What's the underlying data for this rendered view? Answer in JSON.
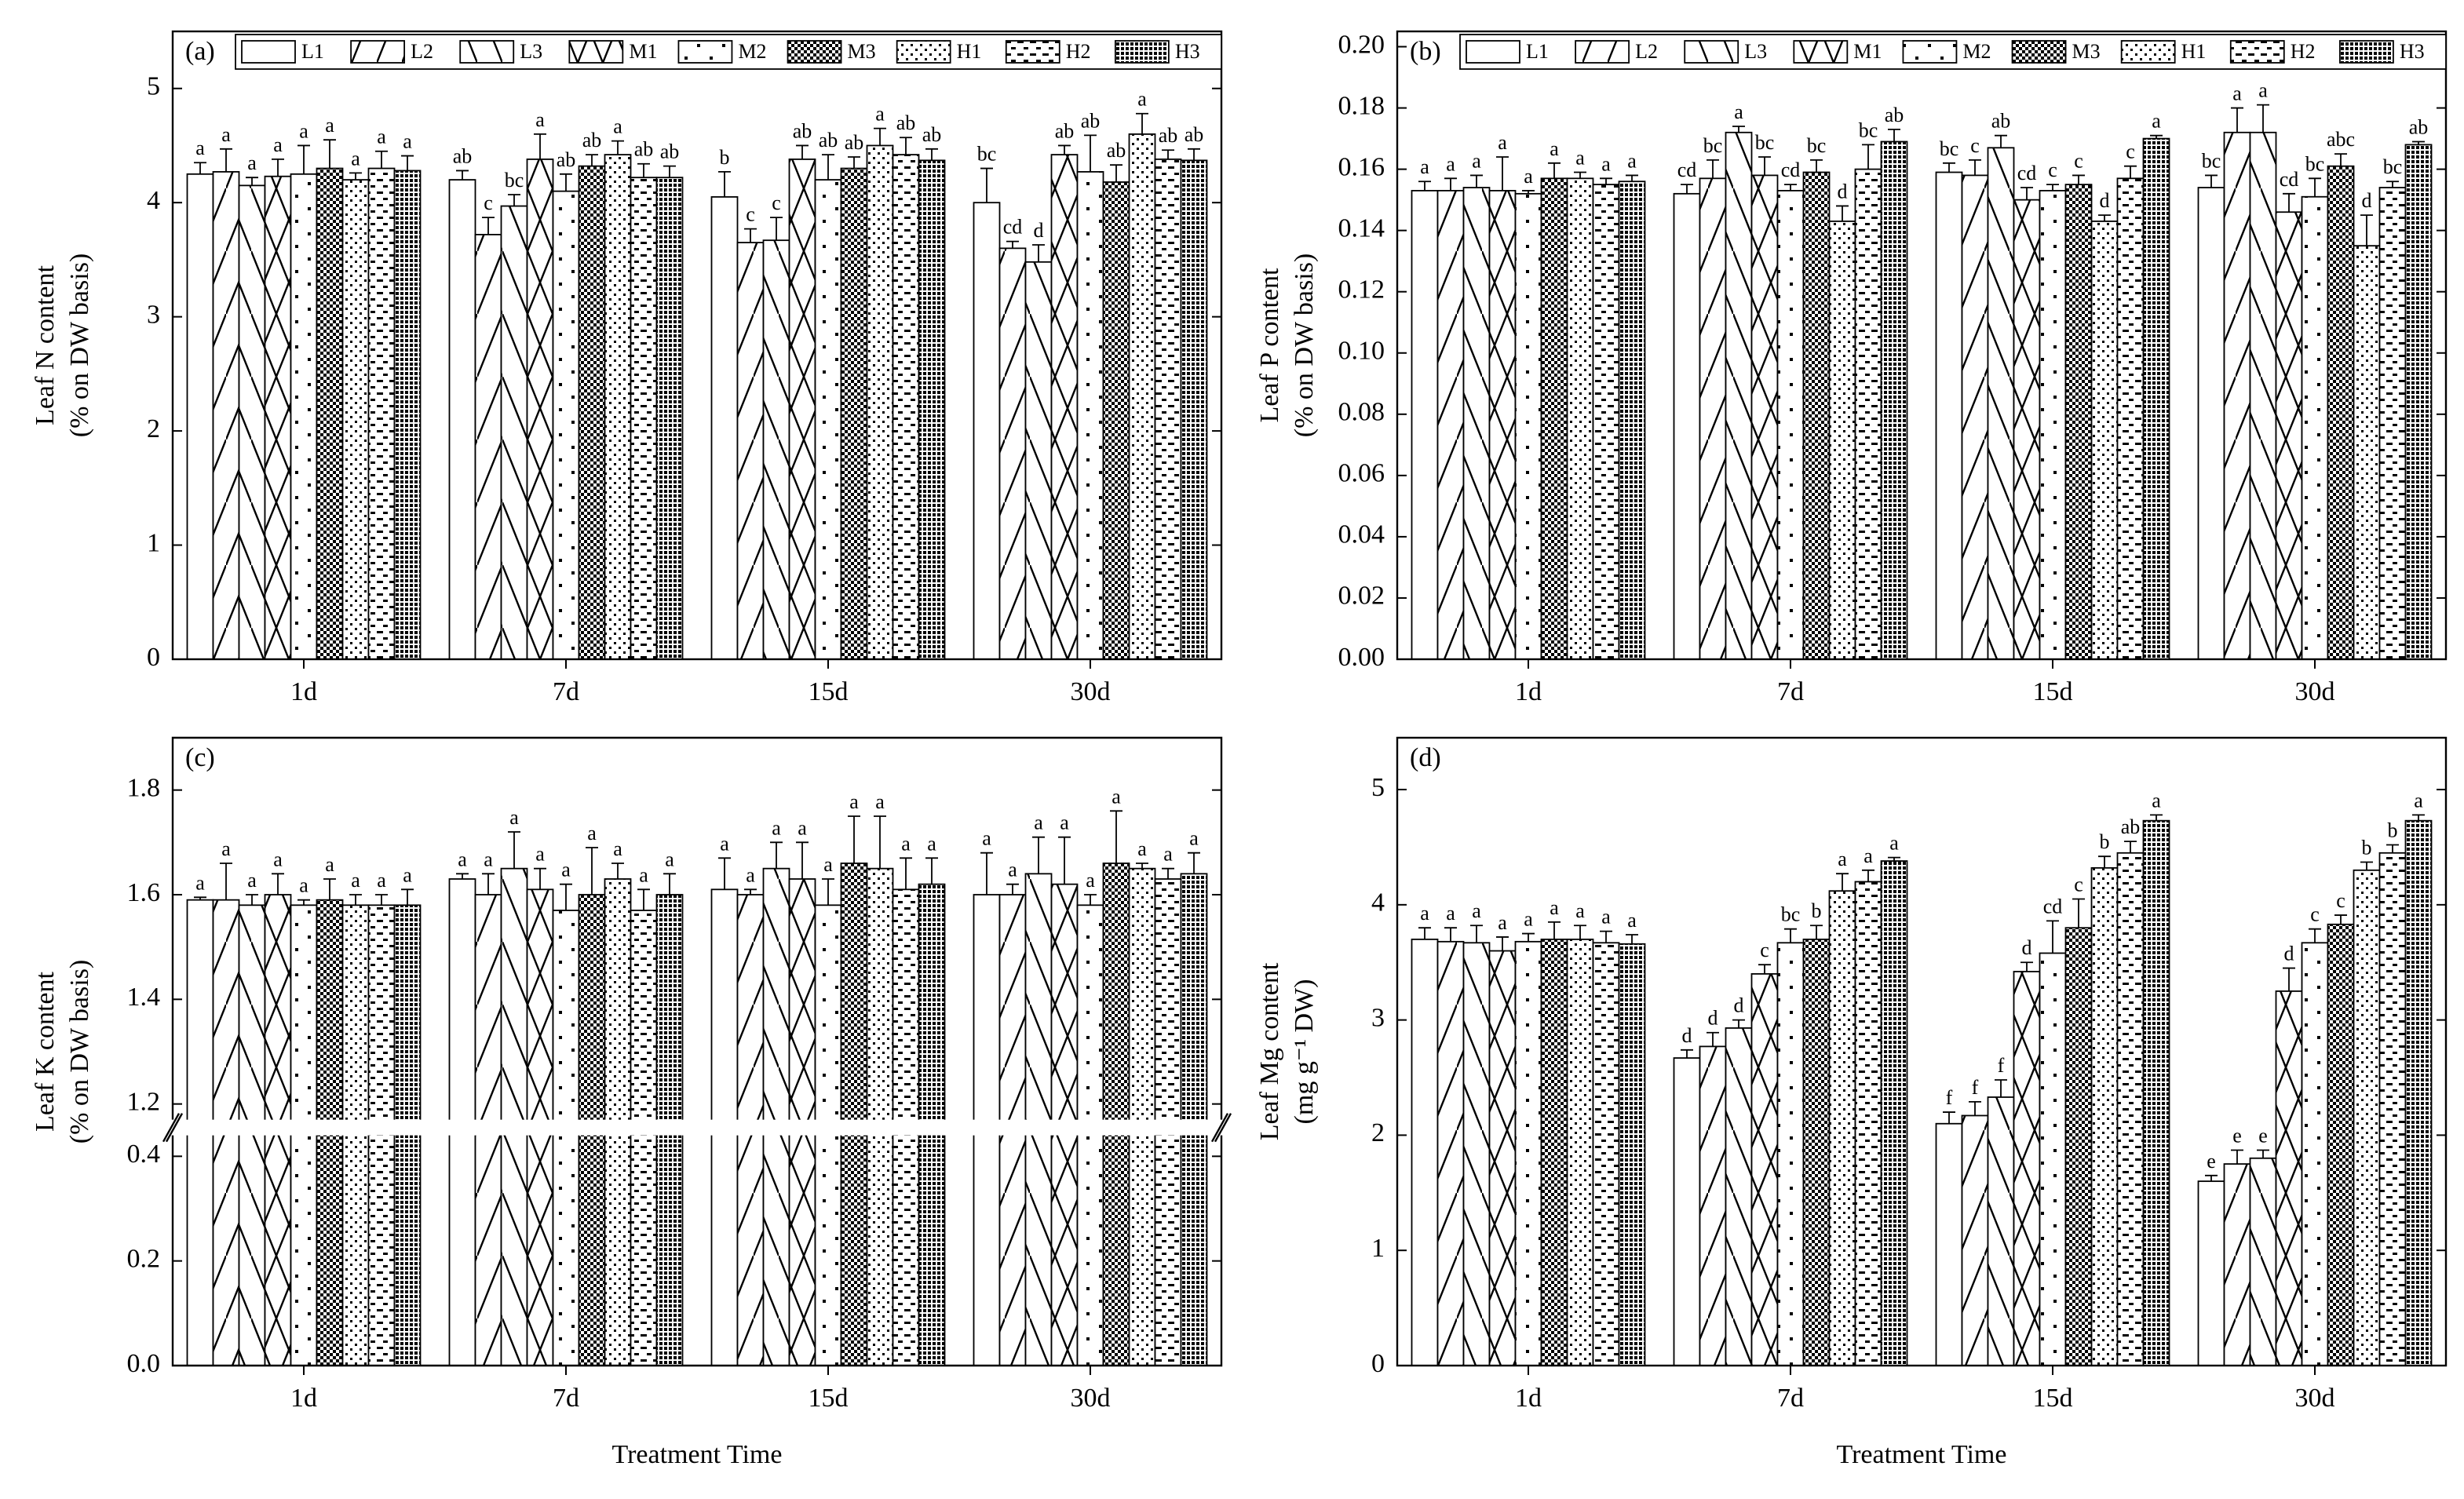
{
  "chart_data": [
    {
      "type": "bar",
      "label": "(a)",
      "ylabel": [
        "Leaf  N content",
        "(% on DW basis)"
      ],
      "legend": "top",
      "categories": [
        "1d",
        "7d",
        "15d",
        "30d"
      ],
      "ylim": [
        0,
        5.5
      ],
      "yticks": [
        0,
        1,
        2,
        3,
        4,
        5
      ],
      "series": [
        {
          "name": "L1",
          "values": [
            4.25,
            4.2,
            4.05,
            4.0
          ],
          "errors": [
            0.1,
            0.08,
            0.22,
            0.3
          ],
          "letters": [
            "a",
            "ab",
            "b",
            "bc"
          ]
        },
        {
          "name": "L2",
          "values": [
            4.27,
            3.72,
            3.65,
            3.6
          ],
          "errors": [
            0.2,
            0.15,
            0.12,
            0.06
          ],
          "letters": [
            "a",
            "c",
            "c",
            "cd"
          ]
        },
        {
          "name": "L3",
          "values": [
            4.15,
            3.97,
            3.67,
            3.48
          ],
          "errors": [
            0.07,
            0.1,
            0.2,
            0.15
          ],
          "letters": [
            "a",
            "bc",
            "c",
            "d"
          ]
        },
        {
          "name": "M1",
          "values": [
            4.23,
            4.38,
            4.38,
            4.42
          ],
          "errors": [
            0.15,
            0.22,
            0.12,
            0.08
          ],
          "letters": [
            "a",
            "a",
            "ab",
            "ab"
          ]
        },
        {
          "name": "M2",
          "values": [
            4.25,
            4.1,
            4.2,
            4.27
          ],
          "errors": [
            0.25,
            0.15,
            0.22,
            0.32
          ],
          "letters": [
            "a",
            "ab",
            "ab",
            "ab"
          ]
        },
        {
          "name": "M3",
          "values": [
            4.3,
            4.32,
            4.3,
            4.18
          ],
          "errors": [
            0.25,
            0.1,
            0.1,
            0.15
          ],
          "letters": [
            "a",
            "ab",
            "ab",
            "ab"
          ]
        },
        {
          "name": "H1",
          "values": [
            4.2,
            4.42,
            4.5,
            4.6
          ],
          "errors": [
            0.06,
            0.12,
            0.15,
            0.18
          ],
          "letters": [
            "a",
            "a",
            "a",
            "a"
          ]
        },
        {
          "name": "H2",
          "values": [
            4.3,
            4.22,
            4.42,
            4.38
          ],
          "errors": [
            0.15,
            0.12,
            0.15,
            0.08
          ],
          "letters": [
            "a",
            "ab",
            "ab",
            "ab"
          ]
        },
        {
          "name": "H3",
          "values": [
            4.28,
            4.22,
            4.37,
            4.37
          ],
          "errors": [
            0.13,
            0.1,
            0.1,
            0.1
          ],
          "letters": [
            "a",
            "ab",
            "ab",
            "ab"
          ]
        }
      ]
    },
    {
      "type": "bar",
      "label": "(b)",
      "ylabel": [
        "Leaf  P content",
        "(% on DW basis)"
      ],
      "legend": "top",
      "categories": [
        "1d",
        "7d",
        "15d",
        "30d"
      ],
      "ylim": [
        0,
        0.205
      ],
      "yticks": [
        {
          "value": 0,
          "label": "0.00"
        },
        0.02,
        0.04,
        0.06,
        0.08,
        {
          "value": 0.1,
          "label": "0.10"
        },
        0.12,
        0.14,
        0.16,
        0.18,
        {
          "value": 0.2,
          "label": "0.20"
        }
      ],
      "series": [
        {
          "name": "L1",
          "values": [
            0.153,
            0.152,
            0.159,
            0.154
          ],
          "errors": [
            0.003,
            0.003,
            0.003,
            0.004
          ],
          "letters": [
            "a",
            "cd",
            "bc",
            "bc"
          ]
        },
        {
          "name": "L2",
          "values": [
            0.153,
            0.157,
            0.158,
            0.172
          ],
          "errors": [
            0.004,
            0.006,
            0.005,
            0.008
          ],
          "letters": [
            "a",
            "bc",
            "c",
            "a"
          ]
        },
        {
          "name": "L3",
          "values": [
            0.154,
            0.172,
            0.167,
            0.172
          ],
          "errors": [
            0.004,
            0.002,
            0.004,
            0.009
          ],
          "letters": [
            "a",
            "a",
            "ab",
            "a"
          ]
        },
        {
          "name": "M1",
          "values": [
            0.153,
            0.158,
            0.15,
            0.146
          ],
          "errors": [
            0.011,
            0.006,
            0.004,
            0.006
          ],
          "letters": [
            "a",
            "bc",
            "cd",
            "cd"
          ]
        },
        {
          "name": "M2",
          "values": [
            0.152,
            0.153,
            0.153,
            0.151
          ],
          "errors": [
            0.001,
            0.002,
            0.002,
            0.006
          ],
          "letters": [
            "a",
            "cd",
            "c",
            "bc"
          ]
        },
        {
          "name": "M3",
          "values": [
            0.157,
            0.159,
            0.155,
            0.161
          ],
          "errors": [
            0.005,
            0.004,
            0.003,
            0.004
          ],
          "letters": [
            "a",
            "bc",
            "c",
            "abc"
          ]
        },
        {
          "name": "H1",
          "values": [
            0.157,
            0.143,
            0.143,
            0.135
          ],
          "errors": [
            0.002,
            0.005,
            0.002,
            0.01
          ],
          "letters": [
            "a",
            "d",
            "d",
            "d"
          ]
        },
        {
          "name": "H2",
          "values": [
            0.155,
            0.16,
            0.157,
            0.154
          ],
          "errors": [
            0.002,
            0.008,
            0.004,
            0.002
          ],
          "letters": [
            "a",
            "bc",
            "c",
            "bc"
          ]
        },
        {
          "name": "H3",
          "values": [
            0.156,
            0.169,
            0.17,
            0.168
          ],
          "errors": [
            0.002,
            0.004,
            0.001,
            0.001
          ],
          "letters": [
            "a",
            "ab",
            "a",
            "ab"
          ]
        }
      ]
    },
    {
      "type": "bar",
      "label": "(c)",
      "ylabel": [
        "Leaf  K content",
        "(% on DW basis)"
      ],
      "xlabel": "Treatment Time",
      "categories": [
        "1d",
        "7d",
        "15d",
        "30d"
      ],
      "ylim": [
        0,
        1.9
      ],
      "ybreak": [
        0.44,
        1.17
      ],
      "yticks": [
        {
          "value": 0,
          "label": "0.0"
        },
        0.2,
        0.4,
        1.2,
        1.4,
        1.6,
        1.8
      ],
      "series": [
        {
          "values": [
            1.59,
            1.63,
            1.61,
            1.6
          ],
          "errors": [
            0.005,
            0.01,
            0.06,
            0.08
          ],
          "letters": [
            "a",
            "a",
            "a",
            "a"
          ]
        },
        {
          "values": [
            1.59,
            1.6,
            1.6,
            1.6
          ],
          "errors": [
            0.07,
            0.04,
            0.01,
            0.02
          ],
          "letters": [
            "a",
            "a",
            "a",
            "a"
          ]
        },
        {
          "values": [
            1.58,
            1.65,
            1.65,
            1.64
          ],
          "errors": [
            0.02,
            0.07,
            0.05,
            0.07
          ],
          "letters": [
            "a",
            "a",
            "a",
            "a"
          ]
        },
        {
          "values": [
            1.6,
            1.61,
            1.63,
            1.62
          ],
          "errors": [
            0.04,
            0.04,
            0.07,
            0.09
          ],
          "letters": [
            "a",
            "a",
            "a",
            "a"
          ]
        },
        {
          "values": [
            1.58,
            1.57,
            1.58,
            1.58
          ],
          "errors": [
            0.01,
            0.05,
            0.05,
            0.02
          ],
          "letters": [
            "a",
            "a",
            "a",
            "a"
          ]
        },
        {
          "values": [
            1.59,
            1.6,
            1.66,
            1.66
          ],
          "errors": [
            0.04,
            0.09,
            0.09,
            0.1
          ],
          "letters": [
            "a",
            "a",
            "a",
            "a"
          ]
        },
        {
          "values": [
            1.58,
            1.63,
            1.65,
            1.65
          ],
          "errors": [
            0.02,
            0.03,
            0.1,
            0.01
          ],
          "letters": [
            "a",
            "a",
            "a",
            "a"
          ]
        },
        {
          "values": [
            1.58,
            1.57,
            1.61,
            1.63
          ],
          "errors": [
            0.02,
            0.04,
            0.06,
            0.02
          ],
          "letters": [
            "a",
            "a",
            "a",
            "a"
          ]
        },
        {
          "values": [
            1.58,
            1.6,
            1.62,
            1.64
          ],
          "errors": [
            0.03,
            0.04,
            0.05,
            0.04
          ],
          "letters": [
            "a",
            "a",
            "a",
            "a"
          ]
        }
      ]
    },
    {
      "type": "bar",
      "label": "(d)",
      "ylabel": [
        "Leaf  Mg content",
        "(mg g⁻¹ DW)"
      ],
      "xlabel": "Treatment Time",
      "categories": [
        "1d",
        "7d",
        "15d",
        "30d"
      ],
      "ylim": [
        0,
        5.45
      ],
      "yticks": [
        0,
        1,
        2,
        3,
        4,
        5
      ],
      "series": [
        {
          "values": [
            3.7,
            2.67,
            2.1,
            1.6
          ],
          "errors": [
            0.1,
            0.07,
            0.1,
            0.05
          ],
          "letters": [
            "a",
            "d",
            "f",
            "e"
          ]
        },
        {
          "values": [
            3.68,
            2.77,
            2.17,
            1.75
          ],
          "errors": [
            0.12,
            0.12,
            0.12,
            0.12
          ],
          "letters": [
            "a",
            "d",
            "f",
            "e"
          ]
        },
        {
          "values": [
            3.67,
            2.93,
            2.33,
            1.8
          ],
          "errors": [
            0.15,
            0.07,
            0.15,
            0.07
          ],
          "letters": [
            "a",
            "d",
            "f",
            "e"
          ]
        },
        {
          "values": [
            3.6,
            3.4,
            3.42,
            3.25
          ],
          "errors": [
            0.12,
            0.08,
            0.08,
            0.2
          ],
          "letters": [
            "a",
            "c",
            "d",
            "d"
          ]
        },
        {
          "values": [
            3.68,
            3.67,
            3.58,
            3.67
          ],
          "errors": [
            0.07,
            0.12,
            0.28,
            0.12
          ],
          "letters": [
            "a",
            "bc",
            "cd",
            "c"
          ]
        },
        {
          "values": [
            3.7,
            3.7,
            3.8,
            3.83
          ],
          "errors": [
            0.15,
            0.12,
            0.25,
            0.08
          ],
          "letters": [
            "a",
            "b",
            "c",
            "c"
          ]
        },
        {
          "values": [
            3.7,
            4.12,
            4.32,
            4.3
          ],
          "errors": [
            0.12,
            0.15,
            0.1,
            0.07
          ],
          "letters": [
            "a",
            "a",
            "b",
            "b"
          ]
        },
        {
          "values": [
            3.67,
            4.2,
            4.45,
            4.45
          ],
          "errors": [
            0.1,
            0.1,
            0.1,
            0.07
          ],
          "letters": [
            "a",
            "a",
            "ab",
            "b"
          ]
        },
        {
          "values": [
            3.66,
            4.38,
            4.73,
            4.73
          ],
          "errors": [
            0.08,
            0.03,
            0.05,
            0.05
          ],
          "letters": [
            "a",
            "a",
            "a",
            "a"
          ]
        }
      ]
    }
  ]
}
